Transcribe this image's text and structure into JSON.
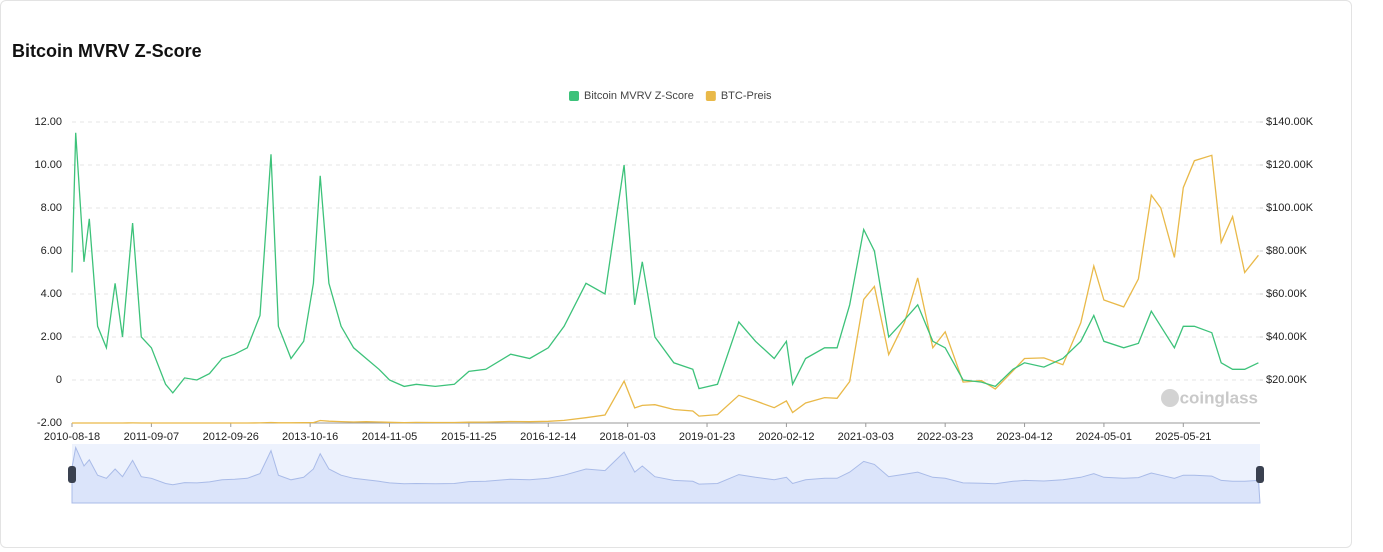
{
  "chart_data": {
    "type": "line",
    "title": "Bitcoin MVRV Z-Score",
    "x": [
      "2010-08-18",
      "2010-09-05",
      "2010-10-15",
      "2010-11-10",
      "2010-12-20",
      "2011-02-01",
      "2011-03-15",
      "2011-04-20",
      "2011-06-08",
      "2011-07-20",
      "2011-09-07",
      "2011-11-15",
      "2011-12-20",
      "2012-02-15",
      "2012-04-15",
      "2012-06-15",
      "2012-08-15",
      "2012-10-15",
      "2012-12-15",
      "2013-02-15",
      "2013-04-09",
      "2013-05-15",
      "2013-07-15",
      "2013-09-15",
      "2013-11-01",
      "2013-12-04",
      "2014-01-15",
      "2014-03-15",
      "2014-05-15",
      "2014-07-15",
      "2014-09-15",
      "2014-11-05",
      "2015-01-15",
      "2015-03-15",
      "2015-06-15",
      "2015-09-15",
      "2015-11-25",
      "2016-02-15",
      "2016-06-15",
      "2016-09-15",
      "2016-12-14",
      "2017-03-01",
      "2017-06-15",
      "2017-09-15",
      "2017-12-17",
      "2018-02-06",
      "2018-03-15",
      "2018-05-15",
      "2018-08-15",
      "2018-11-15",
      "2018-12-15",
      "2019-03-15",
      "2019-06-26",
      "2019-09-15",
      "2019-12-15",
      "2020-02-12",
      "2020-03-13",
      "2020-05-15",
      "2020-08-15",
      "2020-10-15",
      "2020-12-15",
      "2021-02-21",
      "2021-04-14",
      "2021-06-22",
      "2021-09-07",
      "2021-11-10",
      "2022-01-22",
      "2022-03-23",
      "2022-06-18",
      "2022-09-15",
      "2022-11-21",
      "2023-02-15",
      "2023-04-12",
      "2023-07-15",
      "2023-10-15",
      "2024-01-10",
      "2024-03-13",
      "2024-05-01",
      "2024-08-05",
      "2024-10-15",
      "2024-12-17",
      "2025-02-01",
      "2025-04-08",
      "2025-05-21",
      "2025-07-14",
      "2025-10-06",
      "2025-11-21",
      "2026-01-15",
      "2026-03-15",
      "2026-05-20"
    ],
    "series": [
      {
        "name": "Bitcoin MVRV Z-Score",
        "color": "#3dc27a",
        "values": [
          5.0,
          11.5,
          5.5,
          7.5,
          2.5,
          1.5,
          4.5,
          2.0,
          7.3,
          2.0,
          1.5,
          -0.2,
          -0.6,
          0.1,
          0.0,
          0.3,
          1.0,
          1.2,
          1.5,
          3.0,
          10.5,
          2.5,
          1.0,
          1.8,
          4.5,
          9.5,
          4.5,
          2.5,
          1.5,
          1.0,
          0.5,
          0.0,
          -0.3,
          -0.2,
          -0.3,
          -0.2,
          0.4,
          0.5,
          1.2,
          1.0,
          1.5,
          2.5,
          4.5,
          4.0,
          10.0,
          3.5,
          5.5,
          2.0,
          0.8,
          0.5,
          -0.4,
          -0.2,
          2.7,
          1.8,
          1.0,
          1.8,
          -0.2,
          1.0,
          1.5,
          1.5,
          3.5,
          7.0,
          6.0,
          2.0,
          2.8,
          3.5,
          1.8,
          1.5,
          0.0,
          -0.1,
          -0.3,
          0.5,
          0.8,
          0.6,
          1.0,
          1.8,
          3.0,
          1.8,
          1.5,
          1.7,
          3.2,
          2.5,
          1.5,
          2.5,
          2.5,
          2.2,
          0.8,
          0.5,
          0.5,
          0.8
        ]
      },
      {
        "name": "BTC-Preis",
        "color": "#e9b949",
        "axis": "y2",
        "values": [
          0.07,
          0.06,
          0.1,
          0.3,
          0.25,
          0.7,
          0.8,
          1.5,
          30,
          14,
          7,
          2.5,
          3.5,
          4.5,
          5,
          6,
          12,
          11.8,
          13,
          27,
          230,
          115,
          95,
          130,
          200,
          1150,
          850,
          630,
          450,
          620,
          470,
          340,
          200,
          280,
          235,
          230,
          365,
          400,
          690,
          610,
          780,
          1220,
          2450,
          3700,
          19500,
          7000,
          8200,
          8500,
          6300,
          5600,
          3200,
          3900,
          12900,
          10300,
          7100,
          10300,
          4900,
          9300,
          11800,
          11500,
          19300,
          57500,
          63500,
          31800,
          46800,
          67500,
          35000,
          42400,
          19000,
          19700,
          15800,
          24300,
          30000,
          30300,
          27100,
          46600,
          73000,
          57200,
          54000,
          67000,
          106000,
          100000,
          77000,
          109500,
          122000,
          124500,
          84000,
          96000,
          70000,
          78000
        ]
      }
    ],
    "xlim": [
      "2010-08-18",
      "2026-05-28"
    ],
    "xticks": [
      "2010-08-18",
      "2011-09-07",
      "2012-09-26",
      "2013-10-16",
      "2014-11-05",
      "2015-11-25",
      "2016-12-14",
      "2018-01-03",
      "2019-01-23",
      "2020-02-12",
      "2021-03-03",
      "2022-03-23",
      "2023-04-12",
      "2024-05-01",
      "2025-05-21"
    ],
    "ylim": [
      -2,
      12
    ],
    "yticks": [
      {
        "value": -2,
        "label": "-2.00"
      },
      0,
      {
        "value": 2,
        "label": "2.00"
      },
      {
        "value": 4,
        "label": "4.00"
      },
      {
        "value": 6,
        "label": "6.00"
      },
      {
        "value": 8,
        "label": "8.00"
      },
      {
        "value": 10,
        "label": "10.00"
      },
      {
        "value": 12,
        "label": "12.00"
      }
    ],
    "y2lim": [
      0,
      140000
    ],
    "y2ticks": [
      {
        "value": 20000,
        "label": "$20.00K"
      },
      {
        "value": 40000,
        "label": "$40.00K"
      },
      {
        "value": 60000,
        "label": "$60.00K"
      },
      {
        "value": 80000,
        "label": "$80.00K"
      },
      {
        "value": 100000,
        "label": "$100.00K"
      },
      {
        "value": 120000,
        "label": "$120.00K"
      },
      {
        "value": 140000,
        "label": "$140.00K"
      }
    ],
    "grid": true,
    "legend": "top",
    "data_zoom": true,
    "watermark": "coinglass"
  }
}
